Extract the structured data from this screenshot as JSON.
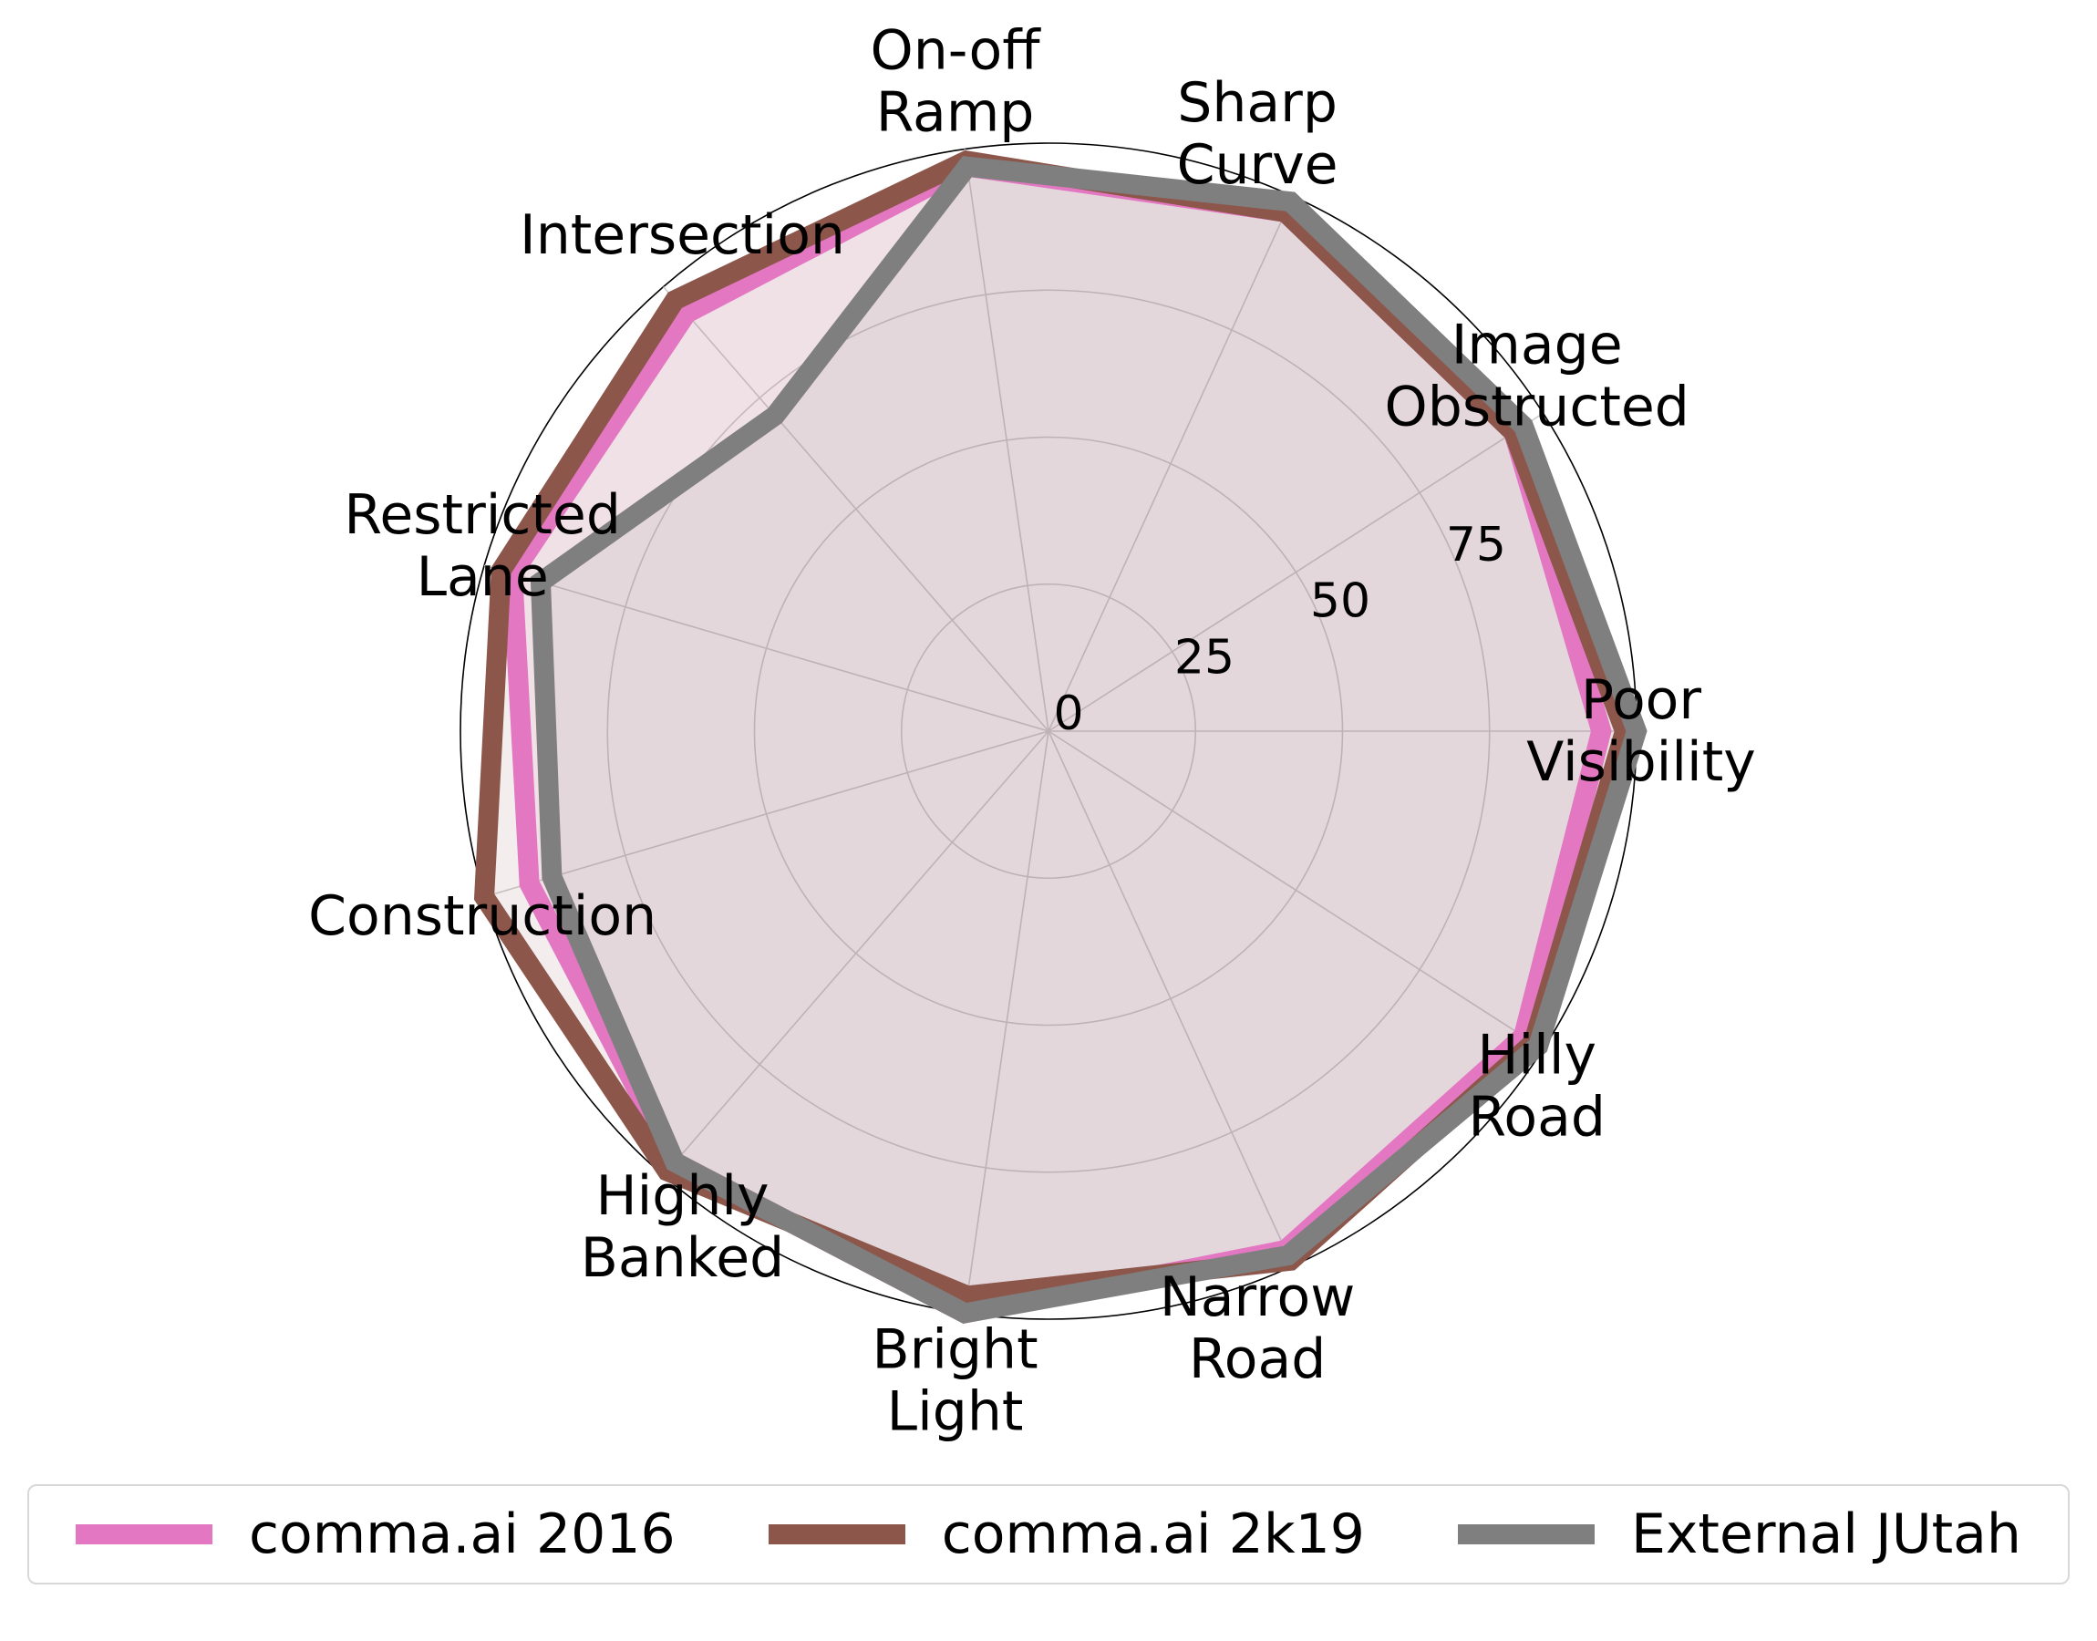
{
  "chart_data": {
    "type": "radar",
    "categories": [
      "Poor\nVisibility",
      "Image\nObstructed",
      "Sharp\nCurve",
      "On-off\nRamp",
      "Intersection",
      "Restricted\nLane",
      "Construction",
      "Highly\nBanked",
      "Bright\nLight",
      "Narrow\nRoad",
      "Hilly\nRoad"
    ],
    "r_ticks": [
      0,
      25,
      50,
      75
    ],
    "rlim": [
      0,
      100
    ],
    "series": [
      {
        "name": "comma.ai 2016",
        "color": "#e377c2",
        "values": [
          94,
          94,
          97,
          97,
          94,
          95,
          92,
          97,
          100,
          97,
          96
        ]
      },
      {
        "name": "comma.ai 2k19",
        "color": "#8c564b",
        "values": [
          98,
          94,
          97,
          98,
          97,
          97,
          100,
          99,
          97,
          99,
          98
        ]
      },
      {
        "name": "External JUtah",
        "color": "#7f7f7f",
        "values": [
          100,
          96,
          99,
          97,
          71,
          90,
          88,
          97,
          100,
          98,
          99
        ]
      }
    ],
    "grid": true,
    "legend": "bottom"
  }
}
